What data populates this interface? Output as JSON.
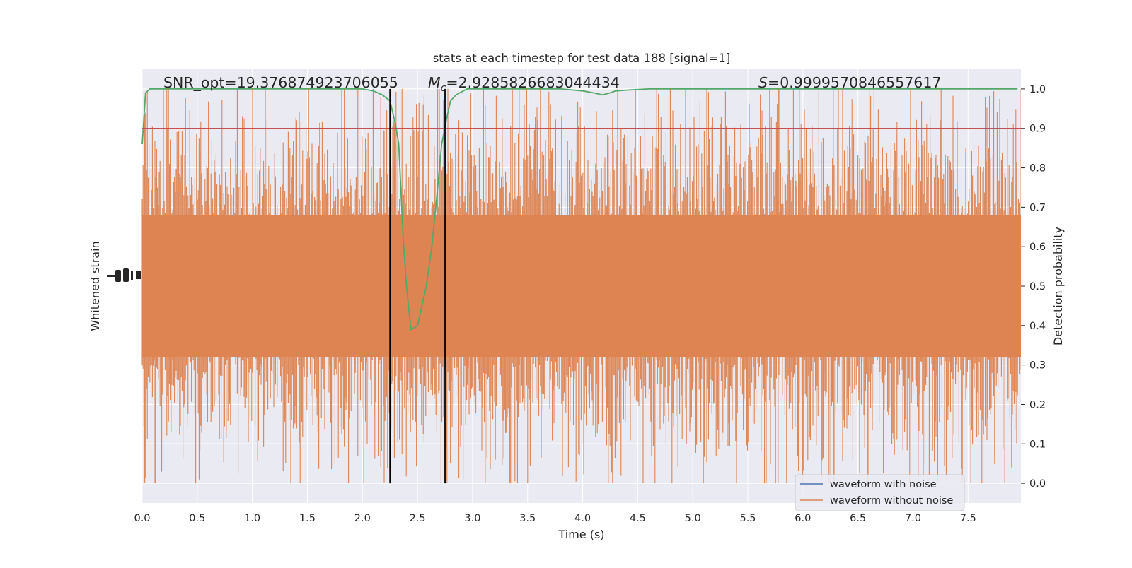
{
  "chart_data": {
    "type": "line",
    "title": "stats at each timestep for test data 188 [signal=1]",
    "xlabel": "Time (s)",
    "ylabel_left": "Whitened strain",
    "ylabel_right": "Detection probability",
    "xlim": [
      0.0,
      8.0
    ],
    "ylim_right": [
      -0.05,
      1.05
    ],
    "grid": true,
    "legend_position": "lower-right",
    "x_ticks": [
      "0.0",
      "0.5",
      "1.0",
      "1.5",
      "2.0",
      "2.5",
      "3.0",
      "3.5",
      "4.0",
      "4.5",
      "5.0",
      "5.5",
      "6.0",
      "6.5",
      "7.0",
      "7.5"
    ],
    "y_ticks_right": [
      "0.0",
      "0.1",
      "0.2",
      "0.3",
      "0.4",
      "0.5",
      "0.6",
      "0.7",
      "0.8",
      "0.9",
      "1.0"
    ],
    "annotations": {
      "snr": "SNR_opt=19.376874923706055",
      "mc_symbol": "M",
      "mc_sub": "c",
      "mc_value": "=2.9285826683044434",
      "s_symbol": "S",
      "s_value": "=0.9999570846557617"
    },
    "series": [
      {
        "name": "waveform with noise",
        "color": "#4c72b0"
      },
      {
        "name": "waveform without noise",
        "color": "#dd8452"
      }
    ],
    "detection_probability": {
      "color": "#55a868",
      "x": [
        0.0,
        0.03,
        0.07,
        0.15,
        0.3,
        0.5,
        0.8,
        1.0,
        1.2,
        1.5,
        1.8,
        2.0,
        2.1,
        2.18,
        2.25,
        2.3,
        2.33,
        2.37,
        2.4,
        2.44,
        2.5,
        2.58,
        2.63,
        2.68,
        2.72,
        2.76,
        2.8,
        2.85,
        2.95,
        3.1,
        3.5,
        3.8,
        4.0,
        4.1,
        4.18,
        4.25,
        4.3,
        4.4,
        4.6,
        5.0,
        5.5,
        6.0,
        6.5,
        7.0,
        7.5,
        7.95
      ],
      "y": [
        0.86,
        0.99,
        1.0,
        1.0,
        1.0,
        1.0,
        1.0,
        1.0,
        1.0,
        1.0,
        1.0,
        1.0,
        0.995,
        0.985,
        0.97,
        0.91,
        0.86,
        0.62,
        0.5,
        0.39,
        0.4,
        0.5,
        0.6,
        0.74,
        0.86,
        0.92,
        0.97,
        0.985,
        1.0,
        1.0,
        1.0,
        1.0,
        0.995,
        0.99,
        0.985,
        0.99,
        0.995,
        0.997,
        1.0,
        1.0,
        1.0,
        1.0,
        1.0,
        1.0,
        1.0,
        1.0
      ]
    },
    "threshold": {
      "y": 0.9,
      "color": "#c44e52"
    },
    "vlines": [
      {
        "x": 2.25,
        "color": "#000000"
      },
      {
        "x": 2.75,
        "color": "#000000"
      }
    ]
  }
}
